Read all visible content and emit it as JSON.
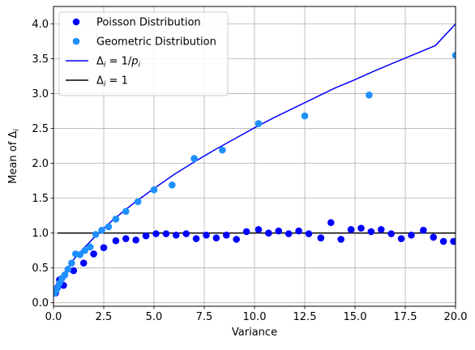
{
  "chart_data": {
    "type": "scatter",
    "xlabel": "Variance",
    "ylabel": "Mean of Δ",
    "ylabel_sub": "i",
    "xlim": [
      0,
      20
    ],
    "ylim": [
      -0.05,
      4.25
    ],
    "x_ticks": [
      0,
      2.5,
      5,
      7.5,
      10,
      12.5,
      15,
      17.5,
      20
    ],
    "x_tick_labels": [
      "0.0",
      "2.5",
      "5.0",
      "7.5",
      "10.0",
      "12.5",
      "15.0",
      "17.5",
      "20.0"
    ],
    "y_ticks": [
      0,
      0.5,
      1,
      1.5,
      2,
      2.5,
      3,
      3.5,
      4
    ],
    "y_tick_labels": [
      "0.0",
      "0.5",
      "1.0",
      "1.5",
      "2.0",
      "2.5",
      "3.0",
      "3.5",
      "4.0"
    ],
    "grid": true,
    "legend_position": "top-left",
    "series": [
      {
        "name": "Poisson Distribution",
        "kind": "points",
        "color": "#0000ff",
        "x": [
          0.1,
          0.2,
          0.3,
          0.5,
          1.0,
          1.5,
          2.0,
          2.5,
          3.1,
          3.6,
          4.1,
          4.6,
          5.1,
          5.6,
          6.1,
          6.6,
          7.1,
          7.6,
          8.1,
          8.6,
          9.1,
          9.6,
          10.2,
          10.7,
          11.2,
          11.7,
          12.2,
          12.7,
          13.3,
          13.8,
          14.3,
          14.8,
          15.3,
          15.8,
          16.3,
          16.8,
          17.3,
          17.8,
          18.4,
          18.9,
          19.4,
          19.9
        ],
        "y": [
          0.14,
          0.22,
          0.33,
          0.25,
          0.46,
          0.57,
          0.7,
          0.79,
          0.89,
          0.92,
          0.9,
          0.96,
          0.99,
          0.99,
          0.97,
          0.99,
          0.92,
          0.97,
          0.93,
          0.97,
          0.91,
          1.02,
          1.05,
          1.0,
          1.03,
          0.99,
          1.03,
          0.99,
          0.93,
          1.15,
          0.91,
          1.05,
          1.07,
          1.02,
          1.05,
          0.99,
          0.92,
          0.97,
          1.04,
          0.94,
          0.88,
          0.88
        ]
      },
      {
        "name": "Geometric Distribution",
        "kind": "points",
        "color": "#1e90ff",
        "x": [
          0.05,
          0.12,
          0.2,
          0.3,
          0.42,
          0.56,
          0.72,
          0.9,
          1.1,
          1.32,
          1.56,
          1.82,
          2.1,
          2.4,
          2.74,
          3.1,
          3.6,
          4.2,
          5.0,
          5.9,
          7.0,
          8.4,
          10.2,
          12.5,
          15.7,
          20.0
        ],
        "y": [
          0.14,
          0.18,
          0.21,
          0.28,
          0.35,
          0.4,
          0.48,
          0.57,
          0.7,
          0.69,
          0.75,
          0.8,
          0.98,
          1.04,
          1.09,
          1.2,
          1.31,
          1.45,
          1.62,
          1.69,
          2.07,
          2.19,
          2.57,
          2.68,
          2.98,
          3.55
        ]
      },
      {
        "name": "Δ_i = 1/p_i",
        "kind": "line",
        "color": "#0000ff",
        "x": [
          0,
          0.5,
          1,
          1.5,
          2,
          3,
          4,
          5,
          6,
          7,
          8,
          9,
          10,
          11,
          12,
          13,
          14,
          15,
          16,
          17,
          18,
          19,
          20
        ],
        "y": [
          0.15,
          0.41,
          0.62,
          0.78,
          0.93,
          1.2,
          1.43,
          1.64,
          1.84,
          2.02,
          2.19,
          2.35,
          2.51,
          2.66,
          2.8,
          2.94,
          3.08,
          3.2,
          3.33,
          3.45,
          3.57,
          3.69,
          4.0
        ]
      },
      {
        "name": "Δ_i = 1",
        "kind": "line",
        "color": "#000000",
        "x": [
          0.2,
          20
        ],
        "y": [
          1.0,
          1.0
        ]
      }
    ]
  },
  "legend": {
    "items": [
      {
        "label": "Poisson Distribution",
        "color": "#0000ff",
        "kind": "marker"
      },
      {
        "label": "Geometric Distribution",
        "color": "#1e90ff",
        "kind": "marker"
      },
      {
        "label_main": "Δ",
        "label_sub": "i",
        "label_rest": " = 1/",
        "label_p": "p",
        "label_psub": "i",
        "color": "#0000ff",
        "kind": "line"
      },
      {
        "label_main": "Δ",
        "label_sub": "i",
        "label_rest": " = 1",
        "color": "#000000",
        "kind": "line"
      }
    ]
  }
}
